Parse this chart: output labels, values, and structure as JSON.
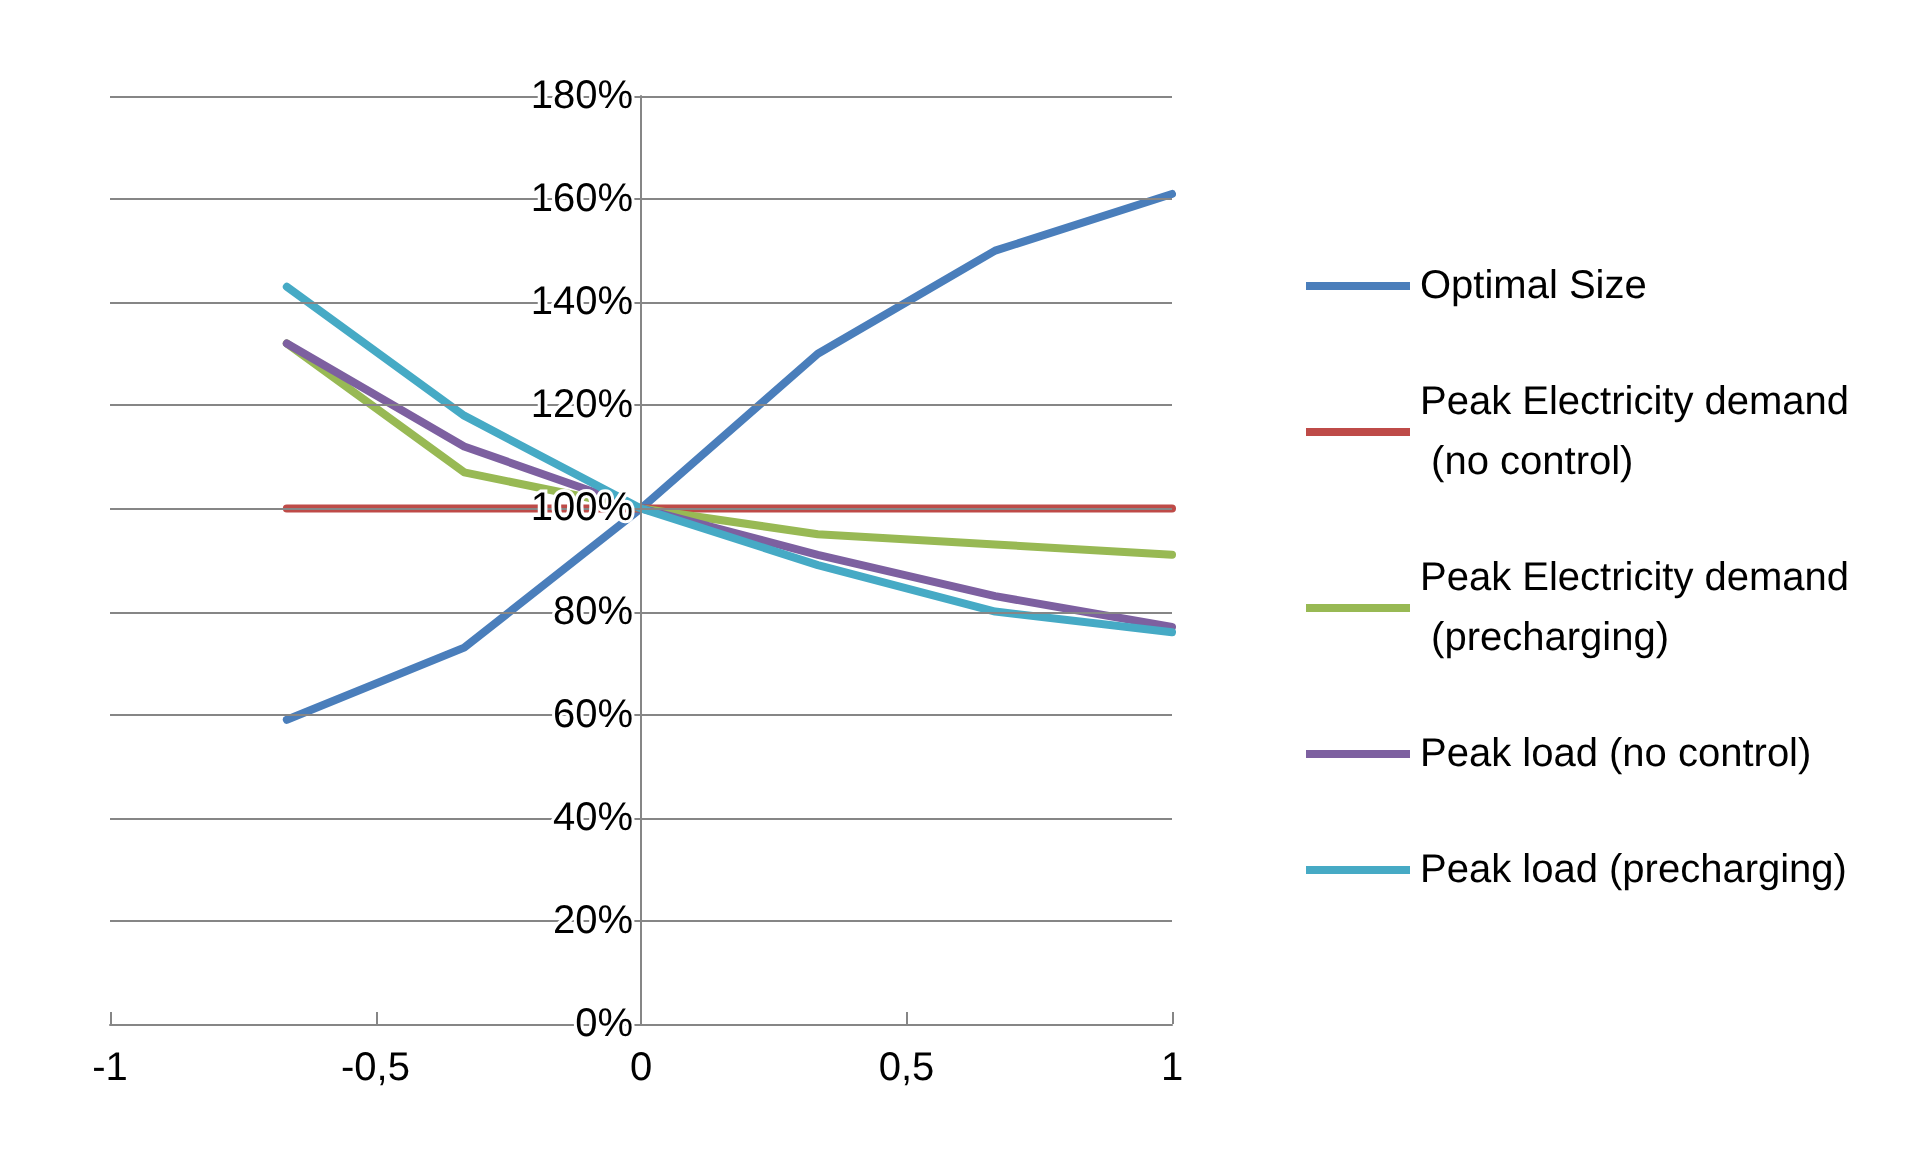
{
  "chart_data": {
    "type": "line",
    "x": [
      -0.667,
      -0.333,
      0,
      0.333,
      0.667,
      1
    ],
    "series": [
      {
        "name": "Optimal Size",
        "color": "#4a7ebb",
        "values": [
          59,
          73,
          100,
          130,
          150,
          161
        ]
      },
      {
        "name": "Peak Electricity demand (no control)",
        "color": "#be4b48",
        "values": [
          100,
          100,
          100,
          100,
          100,
          100
        ]
      },
      {
        "name": "Peak Electricity demand (precharging)",
        "color": "#98b954",
        "values": [
          132,
          107,
          100,
          95,
          93,
          91
        ]
      },
      {
        "name": "Peak load (no control)",
        "color": "#7d60a0",
        "values": [
          132,
          112,
          100,
          91,
          83,
          77
        ]
      },
      {
        "name": "Peak load (precharging)",
        "color": "#46aac5",
        "values": [
          143,
          118,
          100,
          89,
          80,
          76
        ]
      }
    ],
    "xlim": [
      -1,
      1
    ],
    "xticks": [
      -1,
      {
        "value": -0.5,
        "label": "-0,5"
      },
      0,
      {
        "value": 0.5,
        "label": "0,5"
      },
      1
    ],
    "ylim": [
      0,
      180
    ],
    "yticks": [
      {
        "value": 0,
        "label": "0%"
      },
      {
        "value": 20,
        "label": "20%"
      },
      {
        "value": 40,
        "label": "40%"
      },
      {
        "value": 60,
        "label": "60%"
      },
      {
        "value": 80,
        "label": "80%"
      },
      {
        "value": 100,
        "label": "100%"
      },
      {
        "value": 120,
        "label": "120%"
      },
      {
        "value": 140,
        "label": "140%"
      },
      {
        "value": 160,
        "label": "160%"
      },
      {
        "value": 180,
        "label": "180%"
      }
    ],
    "grid": "y",
    "legend": "right",
    "marker": "none",
    "line_style": "solid"
  }
}
